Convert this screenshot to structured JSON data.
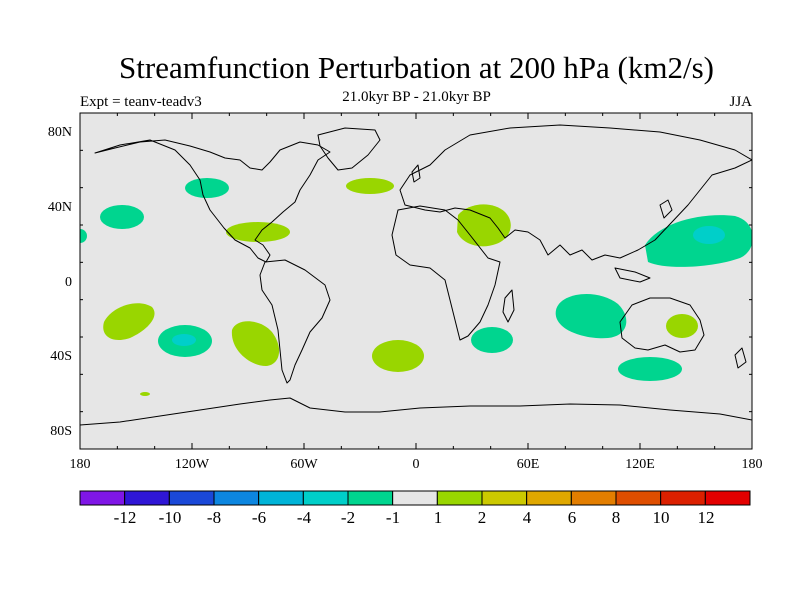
{
  "header": {
    "title": "Streamfunction Perturbation at 200 hPa (km2/s)",
    "subtitle": "21.0kyr BP - 21.0kyr BP",
    "left_label": "Expt = teanv-teadv3",
    "right_label": "JJA"
  },
  "map": {
    "projection": "cylindrical equidistant",
    "lon_ticks": [
      "180",
      "120W",
      "60W",
      "0",
      "60E",
      "120E",
      "180"
    ],
    "lat_ticks": [
      "80N",
      "40N",
      "0",
      "40S",
      "80S"
    ],
    "ocean_color": "#e6e6e6",
    "coast_color": "#000000"
  },
  "colorbar": {
    "labels": [
      "-12",
      "-10",
      "-8",
      "-6",
      "-4",
      "-2",
      "-1",
      "1",
      "2",
      "4",
      "6",
      "8",
      "10",
      "12"
    ],
    "colors": [
      "#7f16e6",
      "#2f16d6",
      "#1a48d8",
      "#0c86e0",
      "#00b4d8",
      "#00cfc9",
      "#00d58f",
      "#e6e6e6",
      "#99d600",
      "#ccc900",
      "#e0a800",
      "#e37e00",
      "#df4e00",
      "#db2000",
      "#e30000"
    ]
  },
  "chart_data": {
    "type": "heatmap",
    "title": "Streamfunction Perturbation at 200 hPa (km2/s)",
    "units": "km2/s",
    "season": "JJA",
    "blobs": [
      {
        "name": "north-atlantic-positive",
        "lon": -40,
        "lat": 52,
        "value_bin": "1 to 2"
      },
      {
        "name": "north-america-negative",
        "lon": -113,
        "lat": 48,
        "value_bin": "-2 to -1"
      },
      {
        "name": "north-pacific-negative",
        "lon": -163,
        "lat": 34,
        "value_bin": "-2 to -1"
      },
      {
        "name": "caribbean-positive",
        "lon": -78,
        "lat": 26,
        "value_bin": "1 to 2"
      },
      {
        "name": "middle-east-positive",
        "lon": 37,
        "lat": 29,
        "value_bin": "1 to 2"
      },
      {
        "name": "west-pacific-negative",
        "lon": 155,
        "lat": 23,
        "value_bin": "-4 to -1"
      },
      {
        "name": "south-pacific-west-positive",
        "lon": -155,
        "lat": -22,
        "value_bin": "1 to 2"
      },
      {
        "name": "south-pacific-negative",
        "lon": -128,
        "lat": -32,
        "value_bin": "-4 to -1"
      },
      {
        "name": "south-pacific-east-positive",
        "lon": -89,
        "lat": -32,
        "value_bin": "1 to 2"
      },
      {
        "name": "south-atlantic-positive",
        "lon": -10,
        "lat": -39,
        "value_bin": "1 to 2"
      },
      {
        "name": "south-africa-negative",
        "lon": 41,
        "lat": -31,
        "value_bin": "-2 to -1"
      },
      {
        "name": "indian-ocean-negative",
        "lon": 94,
        "lat": -16,
        "value_bin": "-2 to -1"
      },
      {
        "name": "australia-positive",
        "lon": 147,
        "lat": -24,
        "value_bin": "1 to 2"
      },
      {
        "name": "south-of-australia-negative",
        "lon": 129,
        "lat": -47,
        "value_bin": "-2 to -1"
      }
    ]
  }
}
